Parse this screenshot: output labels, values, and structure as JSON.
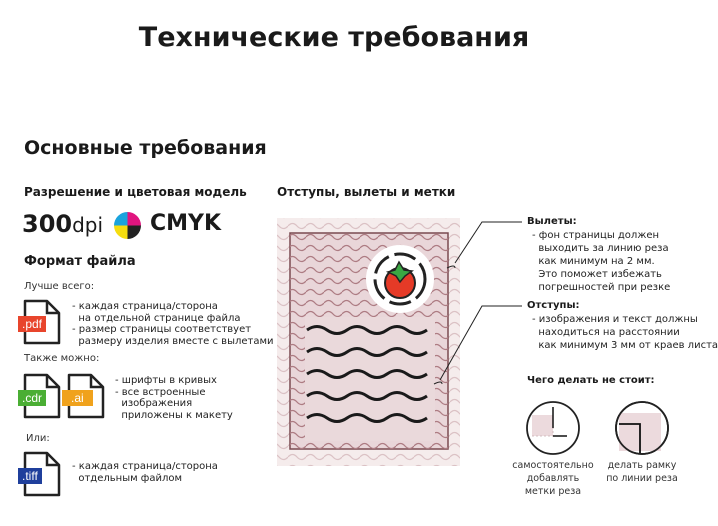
{
  "title": "Технические требования",
  "section_title": "Основные требования",
  "resolution": {
    "heading": "Разрешение и цветовая модель",
    "dpi_number": "300",
    "dpi_unit": "dpi",
    "color_model": "CMYK"
  },
  "file_format": {
    "heading": "Формат файла",
    "groups": [
      {
        "label": "Лучше всего:",
        "files": [
          {
            "ext": ".pdf",
            "color": "#e8452c"
          }
        ],
        "notes": "- каждая страница/сторона\n  на отдельной странице файла\n- размер страницы соответствует\n  размеру изделия вместе с вылетами"
      },
      {
        "label": "Также можно:",
        "files": [
          {
            "ext": ".cdr",
            "color": "#4aae34"
          },
          {
            "ext": ".ai",
            "color": "#f0a21c"
          }
        ],
        "notes": "- шрифты в кривых\n- все встроенные\n  изображения\n  приложены к макету"
      },
      {
        "label": "Или:",
        "files": [
          {
            "ext": ".tiff",
            "color": "#1f3f9c"
          }
        ],
        "notes": "- каждая страница/сторона\n  отдельным файлом"
      }
    ]
  },
  "margins": {
    "heading": "Отступы, вылеты и метки",
    "bleed": {
      "title": "Вылеты:",
      "text": "- фон страницы должен\n  выходить за линию реза\n  как минимум на 2 мм.\n  Это поможет избежать\n  погрешностей при резке"
    },
    "padding": {
      "title": "Отступы:",
      "text": "- изображения и текст должны\n  находиться на расстоянии\n  как минимум 3 мм от краев листа"
    },
    "dont": {
      "title": "Чего делать не стоит:",
      "items": [
        "самостоятельно\nдобавлять\nметки реза",
        "делать рамку\nпо линии реза"
      ]
    }
  },
  "colors": {
    "bleed_bg": "#f3e9ea",
    "page_bg": "#e9d6d9",
    "wave": "#b88a90",
    "tomato": "#e53a27",
    "leaf": "#3aa843"
  }
}
